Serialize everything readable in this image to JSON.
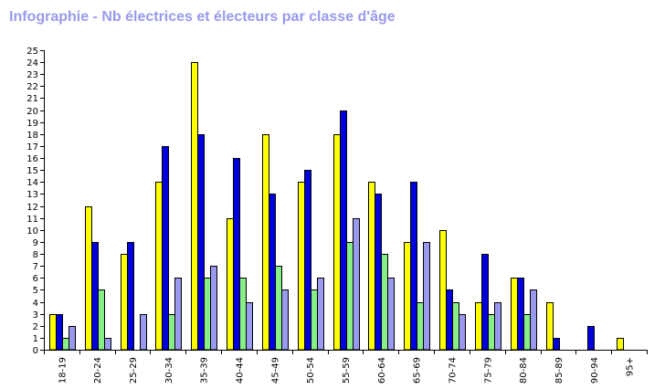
{
  "chart_data": {
    "type": "bar",
    "title": "Infographie - Nb électrices et électeurs par classe d'âge",
    "xlabel": "",
    "ylabel": "",
    "ylim": [
      0,
      25
    ],
    "yticks": [
      0,
      1,
      2,
      3,
      4,
      5,
      6,
      7,
      8,
      9,
      10,
      11,
      12,
      13,
      14,
      15,
      16,
      17,
      18,
      19,
      20,
      21,
      22,
      23,
      24,
      25
    ],
    "categories": [
      "18-19",
      "20-24",
      "25-29",
      "30-34",
      "35-39",
      "40-44",
      "45-49",
      "50-54",
      "55-59",
      "60-64",
      "65-69",
      "70-74",
      "75-79",
      "80-84",
      "85-89",
      "90-94",
      "95+"
    ],
    "series": [
      {
        "color": "#ffff00",
        "values": [
          3,
          12,
          8,
          14,
          24,
          11,
          18,
          14,
          18,
          14,
          9,
          10,
          4,
          6,
          4,
          0,
          1
        ]
      },
      {
        "color": "#0000dd",
        "values": [
          3,
          9,
          9,
          17,
          18,
          16,
          13,
          15,
          20,
          13,
          14,
          5,
          8,
          6,
          1,
          2,
          0
        ]
      },
      {
        "color": "#88ee88",
        "values": [
          1,
          5,
          0,
          3,
          6,
          6,
          7,
          5,
          9,
          8,
          4,
          4,
          3,
          3,
          0,
          0,
          0
        ]
      },
      {
        "color": "#9999ee",
        "values": [
          2,
          1,
          3,
          6,
          7,
          4,
          5,
          6,
          11,
          6,
          9,
          3,
          4,
          5,
          0,
          0,
          0
        ]
      }
    ],
    "grid": false,
    "legend": "none"
  }
}
